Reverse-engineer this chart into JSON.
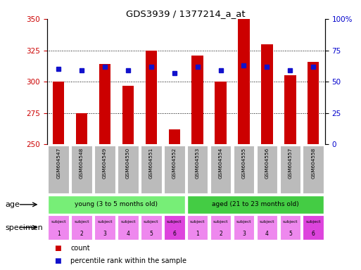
{
  "title": "GDS3939 / 1377214_a_at",
  "samples": [
    "GSM604547",
    "GSM604548",
    "GSM604549",
    "GSM604550",
    "GSM604551",
    "GSM604552",
    "GSM604553",
    "GSM604554",
    "GSM604555",
    "GSM604556",
    "GSM604557",
    "GSM604558"
  ],
  "count_values": [
    300,
    275,
    314,
    297,
    325,
    262,
    321,
    300,
    350,
    330,
    305,
    316
  ],
  "percentile_values": [
    310,
    309,
    312,
    309,
    312,
    307,
    312,
    309,
    313,
    312,
    309,
    312
  ],
  "ylim_left": [
    250,
    350
  ],
  "ylim_right": [
    0,
    100
  ],
  "yticks_left": [
    250,
    275,
    300,
    325,
    350
  ],
  "yticks_right": [
    0,
    25,
    50,
    75,
    100
  ],
  "ytick_labels_right": [
    "0",
    "25",
    "50",
    "75",
    "100%"
  ],
  "bar_color": "#cc0000",
  "percentile_color": "#1111cc",
  "bar_bottom": 250,
  "age_groups": [
    {
      "label": "young (3 to 5 months old)",
      "start": 0,
      "end": 6,
      "color": "#77ee77"
    },
    {
      "label": "aged (21 to 23 months old)",
      "start": 6,
      "end": 12,
      "color": "#44cc44"
    }
  ],
  "specimen_subject_nums": [
    1,
    2,
    3,
    4,
    5,
    6,
    1,
    2,
    3,
    4,
    5,
    6
  ],
  "specimen_base_color": "#ee88ee",
  "specimen_highlight_color": "#dd44dd",
  "xlabel_age": "age",
  "xlabel_specimen": "specimen",
  "legend_count_label": "count",
  "legend_percentile_label": "percentile rank within the sample",
  "tick_label_color_left": "#cc0000",
  "tick_label_color_right": "#0000cc",
  "grid_color": "black",
  "xticklabel_bg": "#bbbbbb",
  "fig_width": 5.13,
  "fig_height": 3.84,
  "dpi": 100
}
